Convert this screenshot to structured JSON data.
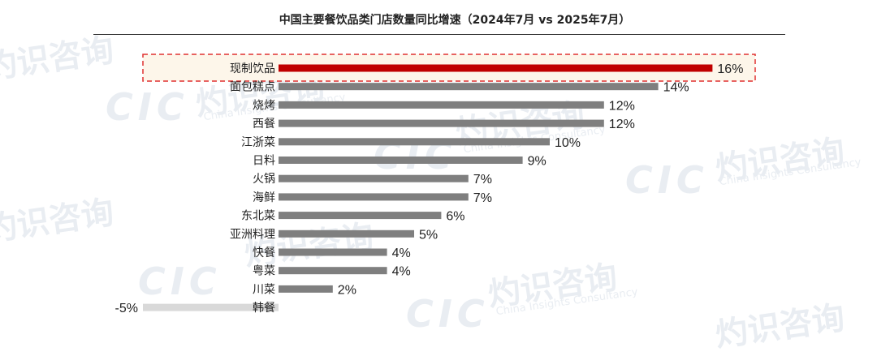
{
  "chart_data": {
    "type": "bar",
    "orientation": "horizontal",
    "title": "中国主要餐饮品类门店数量同比增速（2024年7月 vs 2025年7月）",
    "categories": [
      "现制饮品",
      "面包糕点",
      "烧烤",
      "西餐",
      "江浙菜",
      "日料",
      "火锅",
      "海鲜",
      "东北菜",
      "亚洲料理",
      "快餐",
      "粤菜",
      "川菜",
      "韩餐"
    ],
    "values": [
      16,
      14,
      12,
      12,
      10,
      9,
      7,
      7,
      6,
      5,
      4,
      4,
      2,
      -5
    ],
    "value_labels": [
      "16%",
      "14%",
      "12%",
      "12%",
      "10%",
      "9%",
      "7%",
      "7%",
      "6%",
      "5%",
      "4%",
      "4%",
      "2%",
      "-5%"
    ],
    "unit": "%",
    "highlighted_category": "现制饮品",
    "colors": {
      "highlight": "#c00000",
      "default": "#7f7f7f",
      "negative": "#d9d9d9",
      "highlight_box": "#e03030",
      "highlight_fill": "#fdf6ea"
    },
    "xlim": [
      -5,
      16
    ],
    "grid": false,
    "legend": "none"
  },
  "watermark": {
    "cn": "灼识咨询",
    "en": "China Insights Consultancy",
    "logo": "CIC"
  }
}
